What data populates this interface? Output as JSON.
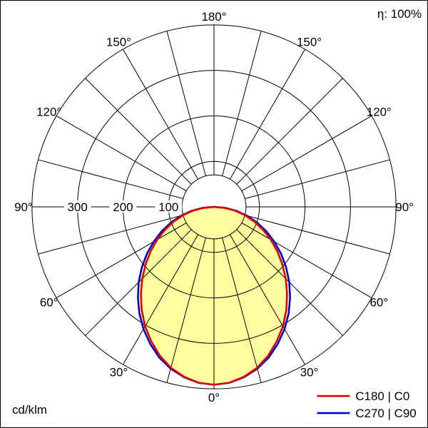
{
  "header": {
    "efficiency_label": "η: 100%"
  },
  "footer": {
    "unit_label": "cd/klm"
  },
  "legend": {
    "items": [
      {
        "label": "C180 | C0",
        "color": "#dd0000"
      },
      {
        "label": "C270 | C90",
        "color": "#0000cc"
      }
    ]
  },
  "chart_data": {
    "type": "polar_intensity_distribution",
    "unit": "cd/klm",
    "efficiency_percent": 100,
    "angle_step_deg": 15,
    "radial_ticks": [
      100,
      200,
      300
    ],
    "radial_max": 400,
    "angle_labels": [
      {
        "deg": 0,
        "text": "0°"
      },
      {
        "deg": 30,
        "text": "30°"
      },
      {
        "deg": 60,
        "text": "60°"
      },
      {
        "deg": 90,
        "text": "90°"
      },
      {
        "deg": 120,
        "text": "120°"
      },
      {
        "deg": 150,
        "text": "150°"
      },
      {
        "deg": 180,
        "text": "180°"
      }
    ],
    "gamma_deg": [
      0,
      5,
      10,
      15,
      20,
      25,
      30,
      35,
      40,
      45,
      50,
      55,
      60,
      65,
      70,
      75,
      80,
      85,
      90
    ],
    "series": [
      {
        "name": "C180 | C0",
        "color": "#dd0000",
        "values": [
          391,
          388,
          379,
          366,
          348,
          326,
          303,
          277,
          250,
          223,
          196,
          170,
          144,
          119,
          94,
          70,
          46,
          23,
          0
        ]
      },
      {
        "name": "C270 | C90",
        "color": "#0000cc",
        "values": [
          391,
          388,
          380,
          368,
          352,
          332,
          310,
          286,
          260,
          234,
          207,
          180,
          153,
          127,
          101,
          75,
          50,
          25,
          0
        ]
      }
    ],
    "fill_color": "#ffffa0",
    "grid": true,
    "legend_position": "bottom-right"
  }
}
